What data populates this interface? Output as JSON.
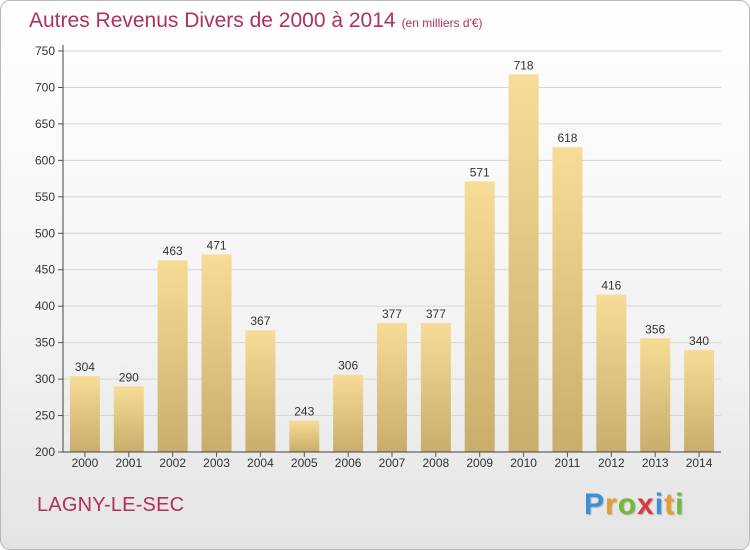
{
  "header": {
    "title": "Autres Revenus Divers de 2000 à 2014",
    "unit": "(en milliers d'€)"
  },
  "footer": {
    "commune": "LAGNY-LE-SEC",
    "logo_letters": [
      "P",
      "r",
      "o",
      "x",
      "i",
      "t",
      "i"
    ],
    "logo_colors": [
      "#3b8fd6",
      "#e89b2e",
      "#74b83a",
      "#d83b3b",
      "#3b8fd6",
      "#e89b2e",
      "#74b83a"
    ]
  },
  "colors": {
    "bar_top": "#f7dc98",
    "bar_bottom": "#c9ad6a",
    "title": "#b0305a"
  },
  "chart_data": {
    "type": "bar",
    "categories": [
      "2000",
      "2001",
      "2002",
      "2003",
      "2004",
      "2005",
      "2006",
      "2007",
      "2008",
      "2009",
      "2010",
      "2011",
      "2012",
      "2013",
      "2014"
    ],
    "values": [
      304,
      290,
      463,
      471,
      367,
      243,
      306,
      377,
      377,
      571,
      718,
      618,
      416,
      356,
      340
    ],
    "title": "Autres Revenus Divers de 2000 à 2014",
    "subtitle": "(en milliers d'€)",
    "xlabel": "",
    "ylabel": "",
    "ylim": [
      200,
      750
    ],
    "yticks": [
      200,
      250,
      300,
      350,
      400,
      450,
      500,
      550,
      600,
      650,
      700,
      750
    ],
    "grid": true,
    "data_labels": true
  }
}
